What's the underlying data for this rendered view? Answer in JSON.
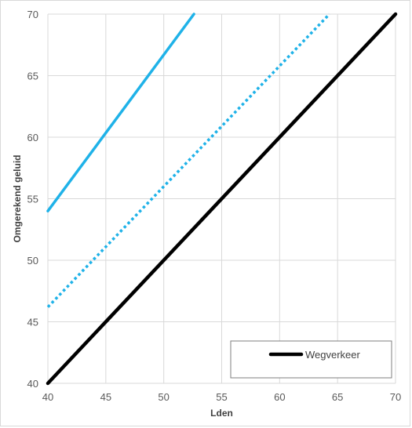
{
  "chart_data": {
    "type": "line",
    "title": "",
    "xlabel": "Lden",
    "ylabel": "Omgerekend geluid",
    "xlim": [
      40,
      70
    ],
    "ylim": [
      40,
      70
    ],
    "xticks": [
      "40",
      "45",
      "50",
      "55",
      "60",
      "65",
      "70"
    ],
    "yticks": [
      "40",
      "45",
      "50",
      "55",
      "60",
      "65",
      "70"
    ],
    "grid": true,
    "legend_position": "bottom-right",
    "series": [
      {
        "name": "",
        "color": "#1fb2e8",
        "style": "solid",
        "x": [
          40,
          52.6
        ],
        "y": [
          54,
          70
        ]
      },
      {
        "name": "",
        "color": "#1fb2e8",
        "style": "dotted",
        "x": [
          40,
          64.3
        ],
        "y": [
          46.2,
          70
        ]
      },
      {
        "name": "Wegverkeer",
        "color": "#000000",
        "style": "solid",
        "x": [
          40,
          70
        ],
        "y": [
          40,
          70
        ]
      }
    ]
  }
}
